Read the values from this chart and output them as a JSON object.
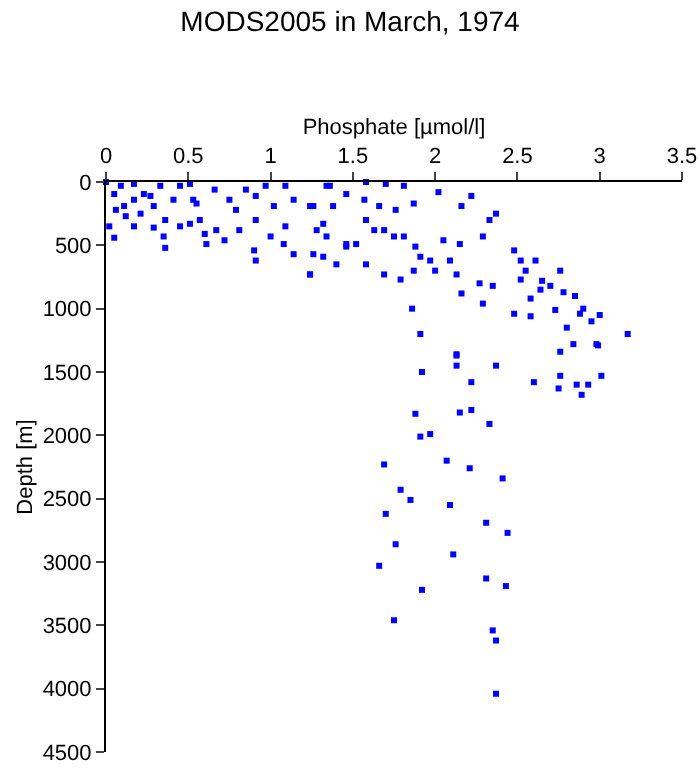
{
  "chart_data": {
    "type": "scatter",
    "title": "MODS2005 in March, 1974",
    "xlabel": "Phosphate [µmol/l]",
    "ylabel": "Depth [m]",
    "x": [
      0,
      0.02,
      0.05,
      0.09,
      0.17,
      0.06,
      0.12,
      0.23,
      0.29,
      0.33,
      0.36,
      0.17,
      0.29,
      0.36,
      0.35,
      0.45,
      0.51,
      0.57,
      0.6,
      0.67,
      0.66,
      0.55,
      0.51,
      0.45,
      0.41,
      0.72,
      0.75,
      0.79,
      0.85,
      0.91,
      0.81,
      0.9,
      0.91,
      0.97,
      1.02,
      1.08,
      1.09,
      1.14,
      1.09,
      1.24,
      1.26,
      1.14,
      1.32,
      1.28,
      1.34,
      1.24,
      1.46,
      0.91,
      1.0,
      0.61,
      0.53,
      0.17,
      0.11,
      0.21,
      0.27,
      0.05,
      1.36,
      1.46,
      1.38,
      1.26,
      1.34,
      1.46,
      1.24,
      1.32,
      1.4,
      1.52,
      1.58,
      1.69,
      1.79,
      1.58,
      1.57,
      1.66,
      1.58,
      1.7,
      1.81,
      1.87,
      1.76,
      1.63,
      1.69,
      1.75,
      1.81,
      1.88,
      1.91,
      1.87,
      2.0,
      1.97,
      2.09,
      2.13,
      2.05,
      2.15,
      2.29,
      2.33,
      2.37,
      2.16,
      2.02,
      2.22,
      1.86,
      1.91,
      2.13,
      2.16,
      2.27,
      2.35,
      2.29,
      2.48,
      2.58,
      2.52,
      2.52,
      2.61,
      2.76,
      2.48,
      2.64,
      2.58,
      2.73,
      2.78,
      2.88,
      2.84,
      2.98,
      3.17,
      2.55,
      2.65,
      2.7,
      2.85,
      2.9,
      2.95,
      2.8,
      3.0,
      1.92,
      2.13,
      2.37,
      2.22,
      2.13,
      2.6,
      2.76,
      2.86,
      2.89,
      2.75,
      3.01,
      2.93,
      2.76,
      2.99,
      1.88,
      2.15,
      2.22,
      2.33,
      1.91,
      1.97,
      1.69,
      2.07,
      2.21,
      2.41,
      1.79,
      1.85,
      2.09,
      1.7,
      2.31,
      2.44,
      1.76,
      2.11,
      1.66,
      2.31,
      2.43,
      1.92,
      1.75,
      2.35,
      2.37,
      2.37
    ],
    "values": [
      0,
      350,
      440,
      30,
      140,
      220,
      270,
      95,
      190,
      30,
      300,
      350,
      360,
      520,
      430,
      350,
      330,
      300,
      410,
      380,
      60,
      170,
      15,
      30,
      140,
      460,
      140,
      220,
      60,
      110,
      380,
      540,
      300,
      30,
      190,
      490,
      350,
      140,
      30,
      190,
      570,
      570,
      330,
      380,
      30,
      730,
      490,
      620,
      430,
      490,
      140,
      15,
      190,
      250,
      110,
      95,
      30,
      95,
      190,
      190,
      430,
      510,
      730,
      590,
      650,
      490,
      650,
      730,
      770,
      300,
      140,
      190,
      0,
      15,
      30,
      170,
      220,
      380,
      380,
      430,
      430,
      510,
      590,
      700,
      700,
      620,
      620,
      730,
      460,
      490,
      430,
      300,
      250,
      190,
      80,
      110,
      1000,
      1200,
      1360,
      880,
      800,
      820,
      960,
      540,
      920,
      620,
      770,
      620,
      700,
      1040,
      850,
      1060,
      1010,
      870,
      1040,
      1280,
      1280,
      1200,
      700,
      780,
      820,
      900,
      1000,
      1100,
      1150,
      1050,
      1500,
      1450,
      1450,
      1580,
      1370,
      1580,
      1530,
      1600,
      1680,
      1630,
      1530,
      1600,
      1340,
      1290,
      1830,
      1820,
      1800,
      1910,
      2010,
      1990,
      2230,
      2200,
      2260,
      2340,
      2430,
      2510,
      2550,
      2620,
      2690,
      2770,
      2860,
      2940,
      3030,
      3130,
      3190,
      3220,
      3460,
      3540,
      3620,
      4040
    ],
    "color": "#0000ff",
    "marker": "square",
    "xlim": [
      0,
      3.5
    ],
    "xticks": [
      0,
      0.5,
      1,
      1.5,
      2,
      2.5,
      3,
      3.5
    ],
    "ylim": [
      4500,
      0
    ],
    "yticks": [
      0,
      500,
      1000,
      1500,
      2000,
      2500,
      3000,
      3500,
      4000,
      4500
    ]
  }
}
